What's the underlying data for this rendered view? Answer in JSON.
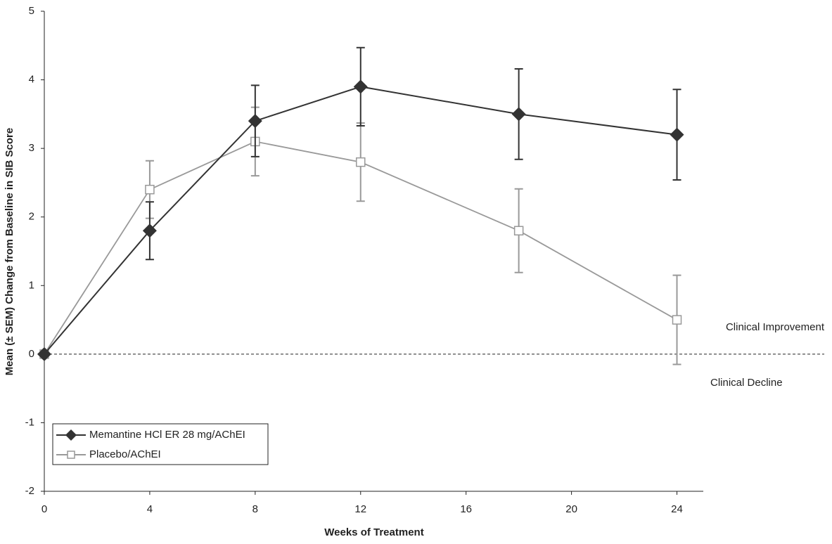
{
  "chart_data": {
    "type": "line",
    "x_label": "Weeks of Treatment",
    "y_label": "Mean (± SEM) Change from Baseline in SIB Score",
    "x": [
      0,
      4,
      8,
      12,
      18,
      24
    ],
    "series": [
      {
        "name": "Memantine HCl ER 28 mg/AChEI",
        "color": "#333333",
        "marker": "diamond",
        "values": [
          0,
          1.8,
          3.4,
          3.9,
          3.5,
          3.2
        ],
        "errors": [
          null,
          0.42,
          0.52,
          0.57,
          0.66,
          0.66
        ]
      },
      {
        "name": "Placebo/AChEI",
        "color": "#999999",
        "marker": "square",
        "values": [
          0,
          2.4,
          3.1,
          2.8,
          1.8,
          0.5
        ],
        "errors": [
          null,
          0.42,
          0.5,
          0.57,
          0.61,
          0.65
        ]
      }
    ],
    "reference_line": 0,
    "annotations": [
      "Clinical Improvement",
      "Clinical Decline"
    ],
    "xlim": [
      0,
      25
    ],
    "xticks": [
      0,
      4,
      8,
      12,
      16,
      20,
      24
    ],
    "ylim": [
      -2,
      5
    ],
    "yticks": [
      -2,
      -1,
      0,
      1,
      2,
      3,
      4,
      5
    ],
    "grid": false,
    "legend": "lower left"
  }
}
